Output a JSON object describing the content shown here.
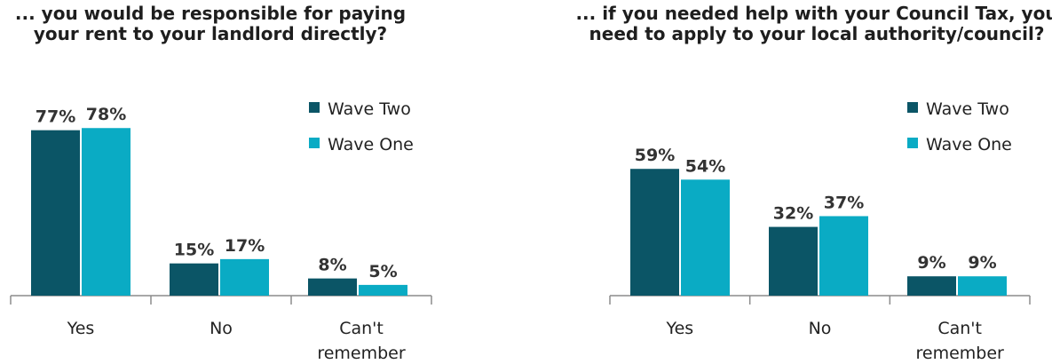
{
  "chart_data": [
    {
      "type": "bar",
      "title_lines": [
        "... you would be responsible for paying",
        "your rent to your landlord directly?"
      ],
      "categories": [
        [
          "Yes"
        ],
        [
          "No"
        ],
        [
          "Can't",
          "remember"
        ]
      ],
      "series": [
        {
          "name": "Wave Two",
          "values": [
            77,
            15,
            8
          ],
          "labels": [
            "77%",
            "15%",
            "8%"
          ],
          "color": "#0b5566"
        },
        {
          "name": "Wave One",
          "values": [
            78,
            17,
            5
          ],
          "labels": [
            "78%",
            "17%",
            "5%"
          ],
          "color": "#0aabc4"
        }
      ],
      "ylim": [
        0,
        100
      ],
      "grid": false,
      "legend": "top-right"
    },
    {
      "type": "bar",
      "title_lines": [
        "... if you needed help with your Council Tax, you",
        "need to apply to your local authority/council?"
      ],
      "categories": [
        [
          "Yes"
        ],
        [
          "No"
        ],
        [
          "Can't",
          "remember"
        ]
      ],
      "series": [
        {
          "name": "Wave Two",
          "values": [
            59,
            32,
            9
          ],
          "labels": [
            "59%",
            "32%",
            "9%"
          ],
          "color": "#0b5566"
        },
        {
          "name": "Wave One",
          "values": [
            54,
            37,
            9
          ],
          "labels": [
            "54%",
            "37%",
            "9%"
          ],
          "color": "#0aabc4"
        }
      ],
      "ylim": [
        0,
        100
      ],
      "grid": false,
      "legend": "top-right"
    }
  ]
}
